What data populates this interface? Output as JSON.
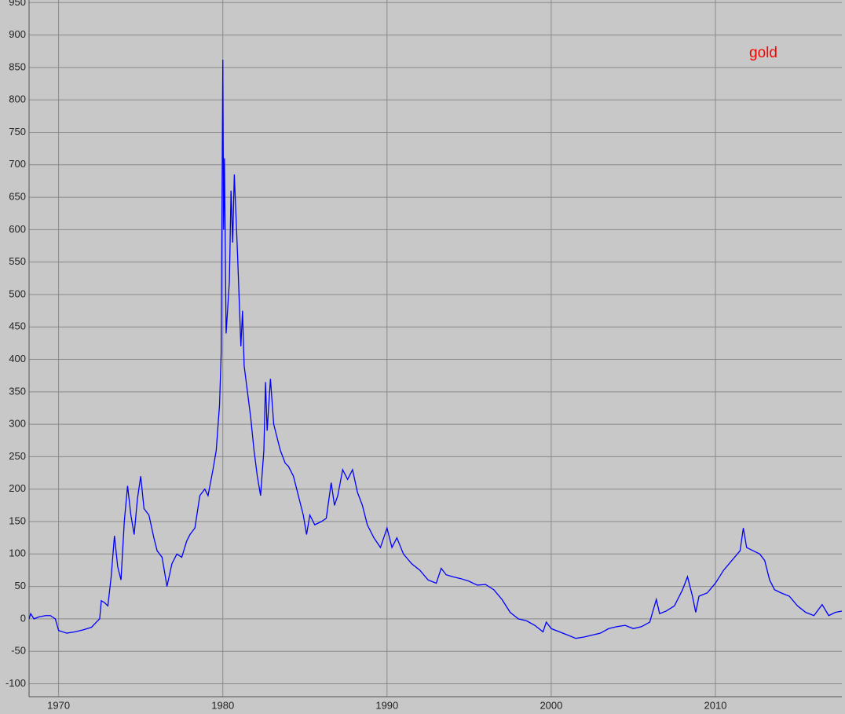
{
  "chart_data": {
    "type": "line",
    "x": [
      1968.2,
      1968.3,
      1968.5,
      1968.8,
      1969.2,
      1969.5,
      1969.8,
      1970.0,
      1970.5,
      1971.0,
      1971.5,
      1972.0,
      1972.3,
      1972.5,
      1972.6,
      1972.8,
      1973.0,
      1973.2,
      1973.4,
      1973.6,
      1973.8,
      1974.0,
      1974.2,
      1974.4,
      1974.6,
      1974.8,
      1975.0,
      1975.2,
      1975.5,
      1975.8,
      1976.0,
      1976.3,
      1976.6,
      1976.9,
      1977.2,
      1977.5,
      1977.8,
      1978.0,
      1978.3,
      1978.6,
      1978.9,
      1979.1,
      1979.4,
      1979.6,
      1979.8,
      1979.9,
      1980.0,
      1980.05,
      1980.1,
      1980.2,
      1980.4,
      1980.5,
      1980.6,
      1980.7,
      1980.9,
      1981.0,
      1981.1,
      1981.2,
      1981.3,
      1981.5,
      1981.7,
      1981.9,
      1982.1,
      1982.3,
      1982.5,
      1982.6,
      1982.7,
      1982.9,
      1983.1,
      1983.3,
      1983.5,
      1983.8,
      1984.0,
      1984.3,
      1984.5,
      1984.7,
      1984.9,
      1985.1,
      1985.3,
      1985.6,
      1986.0,
      1986.3,
      1986.6,
      1986.8,
      1987.0,
      1987.3,
      1987.6,
      1987.9,
      1988.2,
      1988.5,
      1988.8,
      1989.2,
      1989.6,
      1990.0,
      1990.3,
      1990.6,
      1991.0,
      1991.5,
      1992.0,
      1992.5,
      1993.0,
      1993.3,
      1993.6,
      1994.0,
      1994.5,
      1995.0,
      1995.5,
      1996.0,
      1996.5,
      1997.0,
      1997.5,
      1998.0,
      1998.5,
      1999.0,
      1999.5,
      1999.7,
      2000.0,
      2000.5,
      2001.0,
      2001.5,
      2002.0,
      2002.5,
      2003.0,
      2003.5,
      2004.0,
      2004.5,
      2005.0,
      2005.5,
      2006.0,
      2006.4,
      2006.6,
      2007.0,
      2007.5,
      2008.0,
      2008.3,
      2008.6,
      2008.8,
      2009.0,
      2009.5,
      2010.0,
      2010.5,
      2011.0,
      2011.5,
      2011.7,
      2011.9,
      2012.3,
      2012.7,
      2013.0,
      2013.3,
      2013.6,
      2014.0,
      2014.5,
      2015.0,
      2015.5,
      2016.0,
      2016.5,
      2016.9,
      2017.3,
      2017.7
    ],
    "series": [
      {
        "name": "gold",
        "color": "#0000ff",
        "values": [
          0,
          8,
          0,
          3,
          5,
          5,
          0,
          -18,
          -22,
          -20,
          -17,
          -13,
          -5,
          0,
          28,
          25,
          20,
          65,
          128,
          80,
          60,
          150,
          205,
          160,
          130,
          185,
          220,
          170,
          160,
          125,
          105,
          95,
          50,
          85,
          100,
          95,
          120,
          130,
          140,
          190,
          200,
          190,
          230,
          260,
          330,
          410,
          862,
          600,
          710,
          440,
          520,
          660,
          580,
          685,
          560,
          490,
          420,
          475,
          390,
          350,
          310,
          260,
          220,
          190,
          260,
          365,
          290,
          370,
          300,
          280,
          260,
          240,
          235,
          220,
          200,
          180,
          160,
          130,
          160,
          145,
          150,
          155,
          210,
          175,
          190,
          230,
          215,
          230,
          195,
          175,
          145,
          125,
          110,
          140,
          110,
          125,
          100,
          85,
          75,
          60,
          55,
          78,
          68,
          65,
          62,
          58,
          52,
          53,
          45,
          30,
          10,
          0,
          -3,
          -10,
          -20,
          -5,
          -15,
          -20,
          -25,
          -30,
          -28,
          -25,
          -22,
          -15,
          -12,
          -10,
          -15,
          -12,
          -5,
          30,
          8,
          12,
          20,
          45,
          65,
          35,
          10,
          35,
          40,
          55,
          75,
          90,
          105,
          140,
          110,
          105,
          100,
          90,
          60,
          45,
          40,
          35,
          20,
          10,
          5,
          22,
          5,
          10,
          12
        ]
      }
    ],
    "legend_color": "#ff0000",
    "legend": "top-right",
    "xlim": [
      1968.2,
      2017.7
    ],
    "xticks": [
      1970,
      1980,
      1990,
      2000,
      2010
    ],
    "ylim": [
      -120,
      954
    ],
    "yticks": [
      -100,
      -50,
      0,
      50,
      100,
      150,
      200,
      250,
      300,
      350,
      400,
      450,
      500,
      550,
      600,
      650,
      700,
      750,
      800,
      850,
      900,
      950
    ],
    "grid": true
  }
}
